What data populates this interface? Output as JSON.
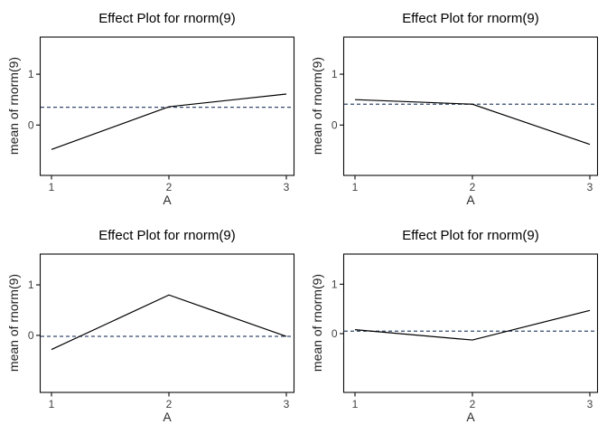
{
  "figure": {
    "kind": "R effects package lattice of effect plots",
    "rows": 2,
    "cols": 2,
    "background": "#ffffff"
  },
  "colors": {
    "data_line": "#000000",
    "mean_line": "#34496f",
    "axis_box": "#0a0a0a",
    "tick_label": "#404040",
    "title": "#000000",
    "axis_label": "#2b2b2b"
  },
  "chart_data": [
    {
      "type": "line",
      "title": "Effect Plot for rnorm(9)",
      "xlabel": "A",
      "ylabel": "mean of rnorm(9)",
      "x": [
        1,
        2,
        3
      ],
      "values": [
        -0.48,
        0.36,
        0.61
      ],
      "mean_line": 0.35,
      "mean_line_style": "dashed",
      "line_style": "solid",
      "xticks": [
        1,
        2,
        3
      ],
      "yticks": [
        0,
        1
      ],
      "ylim": [
        -0.99,
        1.73
      ],
      "grid": false,
      "legend": null
    },
    {
      "type": "line",
      "title": "Effect Plot for rnorm(9)",
      "xlabel": "A",
      "ylabel": "mean of rnorm(9)",
      "x": [
        1,
        2,
        3
      ],
      "values": [
        0.5,
        0.41,
        -0.38
      ],
      "mean_line": 0.41,
      "mean_line_style": "dashed",
      "line_style": "solid",
      "xticks": [
        1,
        2,
        3
      ],
      "yticks": [
        0,
        1
      ],
      "ylim": [
        -0.99,
        1.73
      ],
      "grid": false,
      "legend": null
    },
    {
      "type": "line",
      "title": "Effect Plot for rnorm(9)",
      "xlabel": "A",
      "ylabel": "mean of rnorm(9)",
      "x": [
        1,
        2,
        3
      ],
      "values": [
        -0.28,
        0.8,
        -0.02
      ],
      "mean_line": -0.02,
      "mean_line_style": "dashed",
      "line_style": "solid",
      "xticks": [
        1,
        2,
        3
      ],
      "yticks": [
        0,
        1
      ],
      "ylim": [
        -1.13,
        1.61
      ],
      "grid": false,
      "legend": null
    },
    {
      "type": "line",
      "title": "Effect Plot for rnorm(9)",
      "xlabel": "A",
      "ylabel": "mean of rnorm(9)",
      "x": [
        1,
        2,
        3
      ],
      "values": [
        0.08,
        -0.13,
        0.47
      ],
      "mean_line": 0.05,
      "mean_line_style": "dashed",
      "line_style": "solid",
      "xticks": [
        1,
        2,
        3
      ],
      "yticks": [
        0,
        1
      ],
      "ylim": [
        -1.19,
        1.61
      ],
      "grid": false,
      "legend": null
    }
  ]
}
